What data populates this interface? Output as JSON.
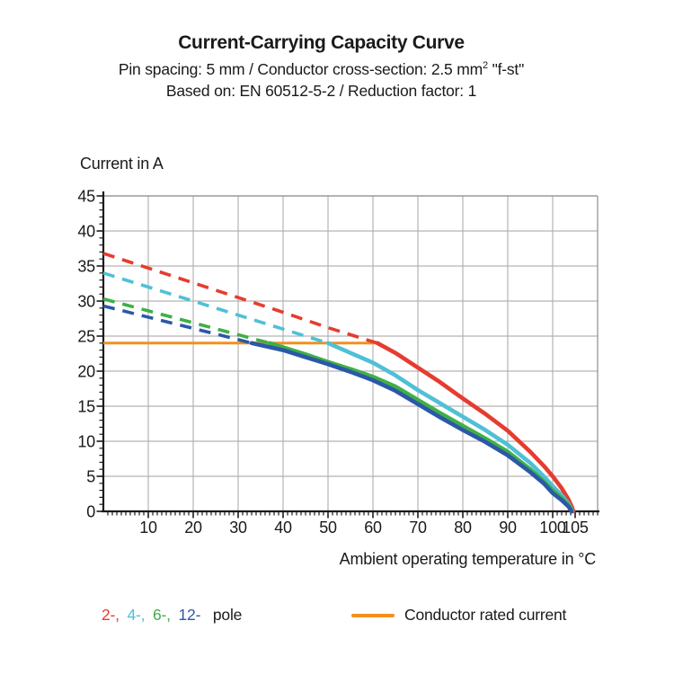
{
  "header": {
    "title": "Current-Carrying Capacity Curve",
    "subtitle_pre": "Pin spacing: 5 mm / Conductor cross-section: 2.5 mm",
    "subtitle_sup": "2",
    "subtitle_post": " \"f-st\"",
    "based_on": "Based on: EN 60512-5-2 / Reduction factor: 1"
  },
  "chart_data": {
    "type": "line",
    "title": "Current-Carrying Capacity Curve",
    "xlabel": "Ambient operating temperature in °C",
    "ylabel": "Current in A",
    "xlim": [
      0,
      110
    ],
    "ylim": [
      0,
      45
    ],
    "grid": true,
    "x_tick_labels": [
      10,
      20,
      30,
      40,
      50,
      60,
      70,
      80,
      90,
      100,
      105
    ],
    "y_tick_labels": [
      0,
      5,
      10,
      15,
      20,
      25,
      30,
      35,
      40,
      45
    ],
    "x_gridline_step": 10,
    "y_gridline_step": 5,
    "colors": {
      "grid": "#b3b3b3",
      "frame": "#9c9c9c",
      "axis": "#1a1a1a",
      "text": "#1a1a1a"
    },
    "rated_current": {
      "label": "Conductor rated current",
      "value": 24,
      "x_start": 0,
      "x_end": 61,
      "color": "#F3901D"
    },
    "legend_suffix": "pole",
    "series": [
      {
        "name": "2-pole",
        "legend_label": "2-,",
        "color": "#E63C2F",
        "dashed_points": [
          [
            0,
            36.8
          ],
          [
            10,
            34.7
          ],
          [
            20,
            32.6
          ],
          [
            30,
            30.5
          ],
          [
            40,
            28.4
          ],
          [
            50,
            26.2
          ],
          [
            61,
            24
          ]
        ],
        "solid_points": [
          [
            61,
            24
          ],
          [
            65,
            22.6
          ],
          [
            70,
            20.5
          ],
          [
            75,
            18.4
          ],
          [
            80,
            16.1
          ],
          [
            85,
            13.9
          ],
          [
            90,
            11.5
          ],
          [
            95,
            8.5
          ],
          [
            98,
            6.5
          ],
          [
            100,
            5.0
          ],
          [
            102,
            3.3
          ],
          [
            103.5,
            1.7
          ],
          [
            104.3,
            0.6
          ],
          [
            104.6,
            0
          ]
        ]
      },
      {
        "name": "4-pole",
        "legend_label": "4-,",
        "color": "#4FC0D6",
        "dashed_points": [
          [
            0,
            34
          ],
          [
            10,
            32
          ],
          [
            20,
            30
          ],
          [
            30,
            28
          ],
          [
            40,
            26
          ],
          [
            50,
            24
          ]
        ],
        "solid_points": [
          [
            50,
            24
          ],
          [
            55,
            22.6
          ],
          [
            60,
            21.2
          ],
          [
            65,
            19.4
          ],
          [
            70,
            17.3
          ],
          [
            75,
            15.4
          ],
          [
            80,
            13.5
          ],
          [
            85,
            11.6
          ],
          [
            90,
            9.5
          ],
          [
            95,
            6.9
          ],
          [
            98,
            5.0
          ],
          [
            100,
            3.6
          ],
          [
            102,
            2.3
          ],
          [
            103.5,
            1.1
          ],
          [
            104.1,
            0.4
          ],
          [
            104.4,
            0
          ]
        ]
      },
      {
        "name": "6-pole",
        "legend_label": "6-,",
        "color": "#3FAF47",
        "dashed_points": [
          [
            0,
            30.3
          ],
          [
            10,
            28.6
          ],
          [
            20,
            26.9
          ],
          [
            30,
            25.2
          ],
          [
            37,
            24
          ]
        ],
        "solid_points": [
          [
            37,
            24
          ],
          [
            45,
            22.4
          ],
          [
            50,
            21.3
          ],
          [
            55,
            20.3
          ],
          [
            60,
            19.2
          ],
          [
            65,
            17.8
          ],
          [
            70,
            15.9
          ],
          [
            75,
            14.0
          ],
          [
            80,
            12.2
          ],
          [
            85,
            10.4
          ],
          [
            90,
            8.5
          ],
          [
            95,
            6.0
          ],
          [
            98,
            4.3
          ],
          [
            100,
            3.0
          ],
          [
            102,
            1.9
          ],
          [
            103.5,
            0.9
          ],
          [
            104.0,
            0.4
          ],
          [
            104.3,
            0
          ]
        ]
      },
      {
        "name": "12-pole",
        "legend_label": "12-",
        "color": "#2B58A8",
        "dashed_points": [
          [
            0,
            29.3
          ],
          [
            10,
            27.7
          ],
          [
            20,
            26.1
          ],
          [
            30,
            24.5
          ],
          [
            33,
            24
          ]
        ],
        "solid_points": [
          [
            33,
            24
          ],
          [
            40,
            23.0
          ],
          [
            45,
            22.0
          ],
          [
            50,
            21.0
          ],
          [
            55,
            19.9
          ],
          [
            60,
            18.7
          ],
          [
            65,
            17.2
          ],
          [
            70,
            15.3
          ],
          [
            75,
            13.4
          ],
          [
            80,
            11.6
          ],
          [
            85,
            9.9
          ],
          [
            90,
            8.0
          ],
          [
            95,
            5.6
          ],
          [
            98,
            4.0
          ],
          [
            100,
            2.6
          ],
          [
            102,
            1.6
          ],
          [
            103.5,
            0.7
          ],
          [
            103.9,
            0.3
          ],
          [
            104.2,
            0
          ]
        ]
      }
    ]
  }
}
